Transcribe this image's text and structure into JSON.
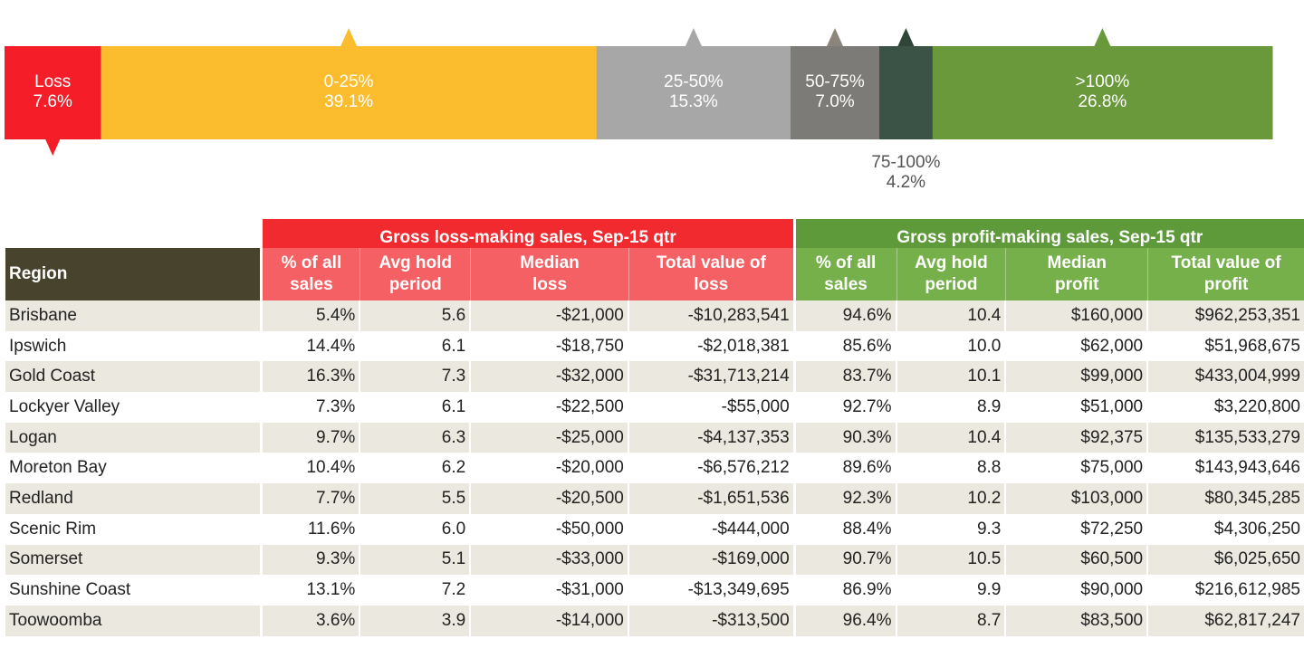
{
  "chart_data": [
    {
      "type": "bar",
      "orientation": "stacked-horizontal-100",
      "categories": [
        "Loss",
        "0-25%",
        "25-50%",
        "50-75%",
        "75-100%",
        ">100%"
      ],
      "values": [
        7.6,
        39.1,
        15.3,
        7.0,
        4.2,
        26.8
      ],
      "value_labels": [
        "7.6%",
        "39.1%",
        "15.3%",
        "7.0%",
        "4.2%",
        "26.8%"
      ],
      "colors": [
        "#f51d27",
        "#fbbd2d",
        "#a7a7a7",
        "#7d7b77",
        "#3b5247",
        "#69993a"
      ],
      "marker_direction": [
        "down",
        "up",
        "up",
        "up",
        "up",
        "up"
      ],
      "label_outside": [
        false,
        false,
        false,
        false,
        true,
        false
      ],
      "marker_colors": [
        "#f51d27",
        "#fbbd2d",
        "#a7a7a7",
        "#8b857c",
        "#2f4538",
        "#69993a"
      ]
    },
    {
      "type": "table",
      "group_headers": [
        {
          "label": "Gross loss-making sales, Sep-15 qtr",
          "color": "#f12a2f"
        },
        {
          "label": "Gross profit-making sales, Sep-15 qtr",
          "color": "#5e9a39"
        }
      ],
      "columns": {
        "region": "Region",
        "loss": [
          [
            "% of all",
            "sales"
          ],
          [
            "Avg hold",
            "period"
          ],
          [
            "Median",
            "loss"
          ],
          [
            "Total value of",
            "loss"
          ]
        ],
        "profit": [
          [
            "% of all",
            "sales"
          ],
          [
            "Avg hold",
            "period"
          ],
          [
            "Median",
            "profit"
          ],
          [
            "Total value of",
            "profit"
          ]
        ]
      },
      "rows": [
        [
          "Brisbane",
          "5.4%",
          "5.6",
          "-$21,000",
          "-$10,283,541",
          "94.6%",
          "10.4",
          "$160,000",
          "$962,253,351"
        ],
        [
          "Ipswich",
          "14.4%",
          "6.1",
          "-$18,750",
          "-$2,018,381",
          "85.6%",
          "10.0",
          "$62,000",
          "$51,968,675"
        ],
        [
          "Gold Coast",
          "16.3%",
          "7.3",
          "-$32,000",
          "-$31,713,214",
          "83.7%",
          "10.1",
          "$99,000",
          "$433,004,999"
        ],
        [
          "Lockyer Valley",
          "7.3%",
          "6.1",
          "-$22,500",
          "-$55,000",
          "92.7%",
          "8.9",
          "$51,000",
          "$3,220,800"
        ],
        [
          "Logan",
          "9.7%",
          "6.3",
          "-$25,000",
          "-$4,137,353",
          "90.3%",
          "10.4",
          "$92,375",
          "$135,533,279"
        ],
        [
          "Moreton Bay",
          "10.4%",
          "6.2",
          "-$20,000",
          "-$6,576,212",
          "89.6%",
          "8.8",
          "$75,000",
          "$143,943,646"
        ],
        [
          "Redland",
          "7.7%",
          "5.5",
          "-$20,500",
          "-$1,651,536",
          "92.3%",
          "10.2",
          "$103,000",
          "$80,345,285"
        ],
        [
          "Scenic Rim",
          "11.6%",
          "6.0",
          "-$50,000",
          "-$444,000",
          "88.4%",
          "9.3",
          "$72,250",
          "$4,306,250"
        ],
        [
          "Somerset",
          "9.3%",
          "5.1",
          "-$33,000",
          "-$169,000",
          "90.7%",
          "10.5",
          "$60,500",
          "$6,025,650"
        ],
        [
          "Sunshine Coast",
          "13.1%",
          "7.2",
          "-$31,000",
          "-$13,349,695",
          "86.9%",
          "9.9",
          "$90,000",
          "$216,612,985"
        ],
        [
          "Toowoomba",
          "3.6%",
          "3.9",
          "-$14,000",
          "-$313,500",
          "96.4%",
          "8.7",
          "$83,500",
          "$62,817,247"
        ]
      ]
    }
  ]
}
